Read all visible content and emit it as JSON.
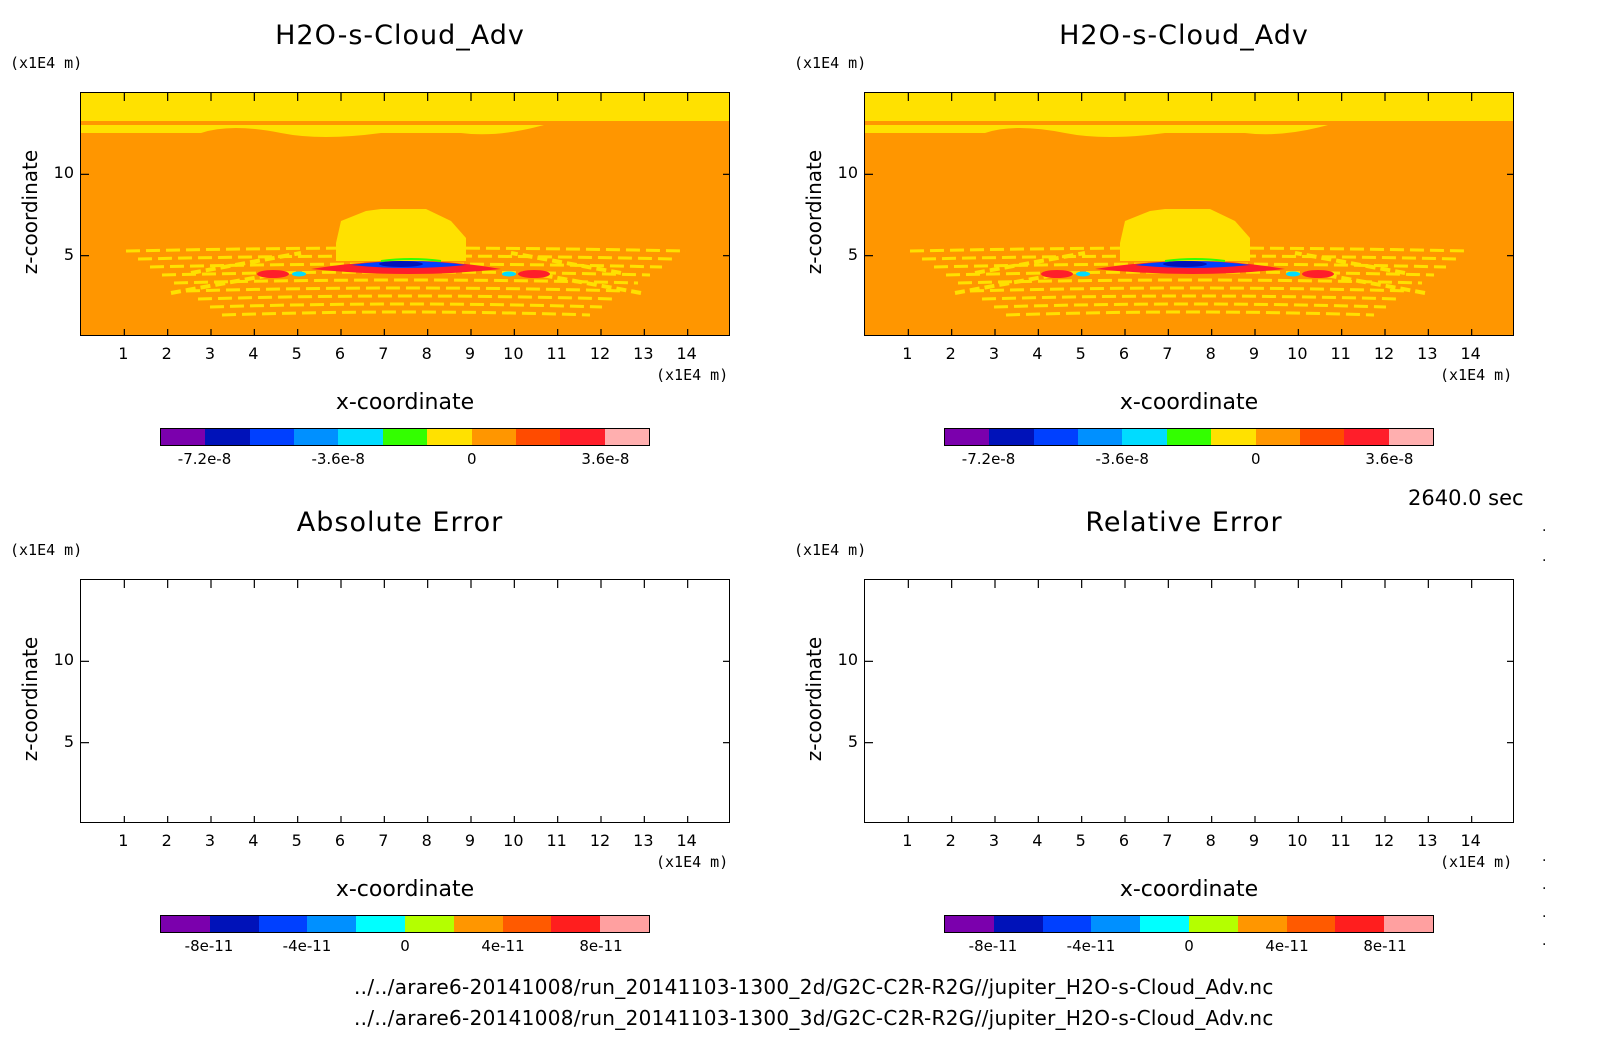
{
  "panels": [
    {
      "title": "H2O-s-Cloud_Adv",
      "type": "field",
      "colorbar": [
        "-7.2e-8",
        "-3.6e-8",
        "0",
        "3.6e-8"
      ]
    },
    {
      "title": "H2O-s-Cloud_Adv",
      "type": "field",
      "colorbar": [
        "-7.2e-8",
        "-3.6e-8",
        "0",
        "3.6e-8"
      ]
    },
    {
      "title": "Absolute Error",
      "type": "empty",
      "colorbar": [
        "-8e-11",
        "-4e-11",
        "0",
        "4e-11",
        "8e-11"
      ]
    },
    {
      "title": "Relative Error",
      "type": "empty",
      "colorbar": [
        "-8e-11",
        "-4e-11",
        "0",
        "4e-11",
        "8e-11"
      ]
    }
  ],
  "axes": {
    "xlabel": "x-coordinate",
    "ylabel": "z-coordinate",
    "x_unit": "(x1E4 m)",
    "y_unit": "(x1E4 m)",
    "x_ticks": [
      "1",
      "2",
      "3",
      "4",
      "5",
      "6",
      "7",
      "8",
      "9",
      "10",
      "11",
      "12",
      "13",
      "14"
    ],
    "y_ticks": [
      "5",
      "10"
    ]
  },
  "colors": {
    "field_cbar": [
      "#7b00ad",
      "#0012b9",
      "#0040ff",
      "#0090ff",
      "#00dcff",
      "#33ff00",
      "#ffe100",
      "#ff9600",
      "#ff4b00",
      "#ff1e2a",
      "#ffafaf"
    ],
    "error_cbar": [
      "#7b00ad",
      "#0012b9",
      "#0040ff",
      "#0090ff",
      "#00ffff",
      "#b4ff00",
      "#ff9600",
      "#ff5a00",
      "#ff1e1e",
      "#ffa0a0"
    ]
  },
  "time_label": "2640.0 sec",
  "files": [
    "../../arare6-20141008/run_20141103-1300_2d/G2C-C2R-R2G//jupiter_H2O-s-Cloud_Adv.nc",
    "../../arare6-20141008/run_20141103-1300_3d/G2C-C2R-R2G//jupiter_H2O-s-Cloud_Adv.nc"
  ],
  "chart_data": [
    {
      "type": "heatmap",
      "title": "H2O-s-Cloud_Adv",
      "xlabel": "x-coordinate",
      "ylabel": "z-coordinate",
      "xlim": [
        0,
        15
      ],
      "ylim": [
        0,
        15
      ],
      "colorbar_ticks": [
        -7.2e-08,
        -3.6e-08,
        0,
        3.6e-08
      ],
      "dominant_value": 0,
      "note_values": []
    },
    {
      "type": "heatmap",
      "title": "H2O-s-Cloud_Adv",
      "xlabel": "x-coordinate",
      "ylabel": "z-coordinate",
      "xlim": [
        0,
        15
      ],
      "ylim": [
        0,
        15
      ],
      "colorbar_ticks": [
        -7.2e-08,
        -3.6e-08,
        0,
        3.6e-08
      ],
      "dominant_value": 0
    },
    {
      "type": "heatmap",
      "title": "Absolute Error",
      "xlabel": "x-coordinate",
      "ylabel": "z-coordinate",
      "xlim": [
        0,
        15
      ],
      "ylim": [
        0,
        15
      ],
      "colorbar_ticks": [
        -8e-11,
        -4e-11,
        0,
        4e-11,
        8e-11
      ]
    },
    {
      "type": "heatmap",
      "title": "Relative Error",
      "xlabel": "x-coordinate",
      "ylabel": "z-coordinate",
      "xlim": [
        0,
        15
      ],
      "ylim": [
        0,
        15
      ],
      "colorbar_ticks": [
        -8e-11,
        -4e-11,
        0,
        4e-11,
        8e-11
      ]
    }
  ]
}
